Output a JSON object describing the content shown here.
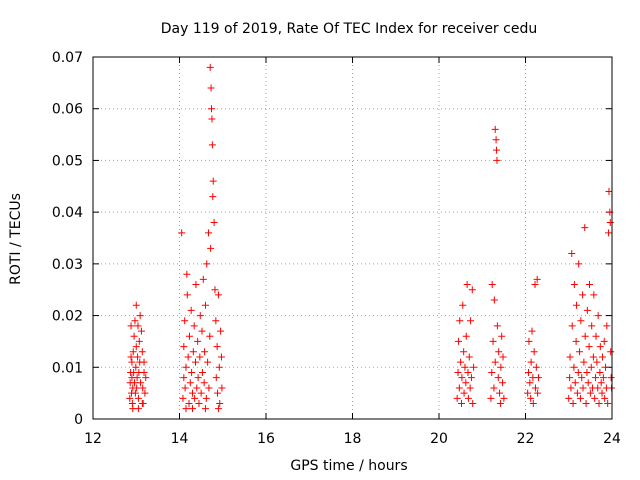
{
  "chart_data": {
    "type": "scatter",
    "title": "Day 119 of 2019, Rate Of TEC Index for receiver cedu",
    "xlabel": "GPS time / hours",
    "ylabel": "ROTI / TECUs",
    "xlim": [
      12,
      24
    ],
    "ylim": [
      0,
      0.07
    ],
    "xticks": [
      12,
      14,
      16,
      18,
      20,
      22,
      24
    ],
    "xtick_labels": [
      "12",
      "14",
      "16",
      "18",
      "20",
      "22",
      "24"
    ],
    "yticks": [
      0,
      0.01,
      0.02,
      0.03,
      0.04,
      0.05,
      0.06,
      0.07
    ],
    "ytick_labels": [
      "0",
      "0.01",
      "0.02",
      "0.03",
      "0.04",
      "0.05",
      "0.06",
      "0.07"
    ],
    "grid": true,
    "marker": "+",
    "color": "#ff0000",
    "series": [
      {
        "name": "ROTI",
        "points": [
          [
            12.85,
            0.004
          ],
          [
            12.86,
            0.007
          ],
          [
            12.87,
            0.009
          ],
          [
            12.88,
            0.012
          ],
          [
            12.89,
            0.005
          ],
          [
            12.9,
            0.008
          ],
          [
            12.9,
            0.011
          ],
          [
            12.91,
            0.003
          ],
          [
            12.92,
            0.006
          ],
          [
            12.93,
            0.013
          ],
          [
            12.94,
            0.009
          ],
          [
            12.95,
            0.016
          ],
          [
            12.96,
            0.007
          ],
          [
            12.97,
            0.019
          ],
          [
            12.98,
            0.005
          ],
          [
            12.99,
            0.01
          ],
          [
            13.0,
            0.014
          ],
          [
            13.0,
            0.022
          ],
          [
            13.01,
            0.006
          ],
          [
            13.02,
            0.008
          ],
          [
            13.03,
            0.012
          ],
          [
            13.04,
            0.018
          ],
          [
            13.05,
            0.004
          ],
          [
            13.06,
            0.009
          ],
          [
            13.07,
            0.015
          ],
          [
            13.08,
            0.011
          ],
          [
            13.1,
            0.007
          ],
          [
            13.12,
            0.017
          ],
          [
            13.14,
            0.013
          ],
          [
            13.15,
            0.006
          ],
          [
            13.16,
            0.003
          ],
          [
            13.18,
            0.009
          ],
          [
            13.2,
            0.005
          ],
          [
            13.22,
            0.008
          ],
          [
            12.92,
            0.002
          ],
          [
            13.05,
            0.002
          ],
          [
            13.14,
            0.003
          ],
          [
            12.88,
            0.018
          ],
          [
            13.18,
            0.011
          ],
          [
            13.09,
            0.02
          ],
          [
            14.05,
            0.036
          ],
          [
            14.08,
            0.004
          ],
          [
            14.1,
            0.008
          ],
          [
            14.1,
            0.014
          ],
          [
            14.12,
            0.019
          ],
          [
            14.13,
            0.006
          ],
          [
            14.15,
            0.01
          ],
          [
            14.17,
            0.028
          ],
          [
            14.18,
            0.024
          ],
          [
            14.2,
            0.012
          ],
          [
            14.22,
            0.003
          ],
          [
            14.23,
            0.016
          ],
          [
            14.25,
            0.007
          ],
          [
            14.27,
            0.021
          ],
          [
            14.28,
            0.009
          ],
          [
            14.3,
            0.005
          ],
          [
            14.32,
            0.013
          ],
          [
            14.34,
            0.018
          ],
          [
            14.35,
            0.004
          ],
          [
            14.37,
            0.011
          ],
          [
            14.38,
            0.026
          ],
          [
            14.4,
            0.006
          ],
          [
            14.42,
            0.015
          ],
          [
            14.43,
            0.008
          ],
          [
            14.45,
            0.003
          ],
          [
            14.47,
            0.012
          ],
          [
            14.48,
            0.02
          ],
          [
            14.5,
            0.005
          ],
          [
            14.52,
            0.017
          ],
          [
            14.53,
            0.009
          ],
          [
            14.55,
            0.027
          ],
          [
            14.57,
            0.007
          ],
          [
            14.58,
            0.013
          ],
          [
            14.6,
            0.022
          ],
          [
            14.62,
            0.004
          ],
          [
            14.63,
            0.03
          ],
          [
            14.65,
            0.011
          ],
          [
            14.67,
            0.036
          ],
          [
            14.68,
            0.006
          ],
          [
            14.7,
            0.016
          ],
          [
            14.71,
            0.068
          ],
          [
            14.73,
            0.064
          ],
          [
            14.74,
            0.06
          ],
          [
            14.75,
            0.058
          ],
          [
            14.76,
            0.053
          ],
          [
            14.78,
            0.046
          ],
          [
            14.77,
            0.043
          ],
          [
            14.8,
            0.038
          ],
          [
            14.72,
            0.033
          ],
          [
            14.82,
            0.025
          ],
          [
            14.84,
            0.019
          ],
          [
            14.85,
            0.008
          ],
          [
            14.87,
            0.014
          ],
          [
            14.88,
            0.005
          ],
          [
            14.9,
            0.024
          ],
          [
            14.92,
            0.01
          ],
          [
            14.93,
            0.003
          ],
          [
            14.95,
            0.017
          ],
          [
            14.97,
            0.012
          ],
          [
            14.98,
            0.006
          ],
          [
            14.6,
            0.002
          ],
          [
            14.3,
            0.002
          ],
          [
            14.9,
            0.002
          ],
          [
            14.15,
            0.002
          ],
          [
            20.42,
            0.004
          ],
          [
            20.44,
            0.009
          ],
          [
            20.45,
            0.015
          ],
          [
            20.47,
            0.006
          ],
          [
            20.48,
            0.019
          ],
          [
            20.5,
            0.011
          ],
          [
            20.52,
            0.003
          ],
          [
            20.53,
            0.008
          ],
          [
            20.55,
            0.022
          ],
          [
            20.57,
            0.013
          ],
          [
            20.58,
            0.005
          ],
          [
            20.6,
            0.01
          ],
          [
            20.62,
            0.007
          ],
          [
            20.63,
            0.016
          ],
          [
            20.65,
            0.026
          ],
          [
            20.67,
            0.009
          ],
          [
            20.68,
            0.004
          ],
          [
            20.7,
            0.012
          ],
          [
            20.72,
            0.006
          ],
          [
            20.73,
            0.019
          ],
          [
            20.75,
            0.008
          ],
          [
            20.77,
            0.025
          ],
          [
            20.78,
            0.003
          ],
          [
            20.8,
            0.01
          ],
          [
            21.2,
            0.004
          ],
          [
            21.22,
            0.009
          ],
          [
            21.23,
            0.026
          ],
          [
            21.25,
            0.015
          ],
          [
            21.27,
            0.006
          ],
          [
            21.28,
            0.023
          ],
          [
            21.3,
            0.011
          ],
          [
            21.3,
            0.056
          ],
          [
            21.32,
            0.054
          ],
          [
            21.33,
            0.052
          ],
          [
            21.34,
            0.05
          ],
          [
            21.35,
            0.018
          ],
          [
            21.37,
            0.008
          ],
          [
            21.38,
            0.013
          ],
          [
            21.4,
            0.005
          ],
          [
            21.42,
            0.003
          ],
          [
            21.43,
            0.01
          ],
          [
            21.45,
            0.016
          ],
          [
            21.47,
            0.007
          ],
          [
            21.48,
            0.012
          ],
          [
            21.5,
            0.004
          ],
          [
            22.05,
            0.005
          ],
          [
            22.07,
            0.009
          ],
          [
            22.08,
            0.015
          ],
          [
            22.1,
            0.007
          ],
          [
            22.12,
            0.004
          ],
          [
            22.13,
            0.011
          ],
          [
            22.15,
            0.017
          ],
          [
            22.17,
            0.008
          ],
          [
            22.18,
            0.003
          ],
          [
            22.2,
            0.013
          ],
          [
            22.22,
            0.026
          ],
          [
            22.23,
            0.006
          ],
          [
            22.25,
            0.01
          ],
          [
            22.27,
            0.027
          ],
          [
            22.28,
            0.005
          ],
          [
            22.3,
            0.008
          ],
          [
            23.0,
            0.004
          ],
          [
            23.02,
            0.008
          ],
          [
            23.03,
            0.012
          ],
          [
            23.05,
            0.006
          ],
          [
            23.07,
            0.032
          ],
          [
            23.08,
            0.018
          ],
          [
            23.1,
            0.003
          ],
          [
            23.12,
            0.01
          ],
          [
            23.13,
            0.026
          ],
          [
            23.15,
            0.007
          ],
          [
            23.17,
            0.015
          ],
          [
            23.18,
            0.022
          ],
          [
            23.2,
            0.005
          ],
          [
            23.22,
            0.009
          ],
          [
            23.23,
            0.03
          ],
          [
            23.25,
            0.013
          ],
          [
            23.27,
            0.004
          ],
          [
            23.28,
            0.019
          ],
          [
            23.3,
            0.008
          ],
          [
            23.32,
            0.024
          ],
          [
            23.33,
            0.006
          ],
          [
            23.35,
            0.011
          ],
          [
            23.37,
            0.037
          ],
          [
            23.38,
            0.016
          ],
          [
            23.4,
            0.003
          ],
          [
            23.42,
            0.009
          ],
          [
            23.43,
            0.021
          ],
          [
            23.45,
            0.007
          ],
          [
            23.47,
            0.014
          ],
          [
            23.48,
            0.026
          ],
          [
            23.5,
            0.005
          ],
          [
            23.52,
            0.01
          ],
          [
            23.53,
            0.018
          ],
          [
            23.55,
            0.006
          ],
          [
            23.57,
            0.012
          ],
          [
            23.58,
            0.024
          ],
          [
            23.6,
            0.004
          ],
          [
            23.62,
            0.008
          ],
          [
            23.63,
            0.016
          ],
          [
            23.65,
            0.011
          ],
          [
            23.67,
            0.006
          ],
          [
            23.68,
            0.02
          ],
          [
            23.7,
            0.003
          ],
          [
            23.72,
            0.009
          ],
          [
            23.73,
            0.014
          ],
          [
            23.75,
            0.007
          ],
          [
            23.77,
            0.005
          ],
          [
            23.78,
            0.012
          ],
          [
            23.8,
            0.008
          ],
          [
            23.82,
            0.015
          ],
          [
            23.83,
            0.004
          ],
          [
            23.85,
            0.01
          ],
          [
            23.87,
            0.006
          ],
          [
            23.88,
            0.018
          ],
          [
            23.9,
            0.003
          ],
          [
            23.92,
            0.036
          ],
          [
            23.93,
            0.044
          ],
          [
            23.95,
            0.04
          ],
          [
            23.96,
            0.038
          ],
          [
            23.97,
            0.013
          ],
          [
            23.98,
            0.008
          ],
          [
            23.99,
            0.006
          ]
        ]
      }
    ]
  }
}
